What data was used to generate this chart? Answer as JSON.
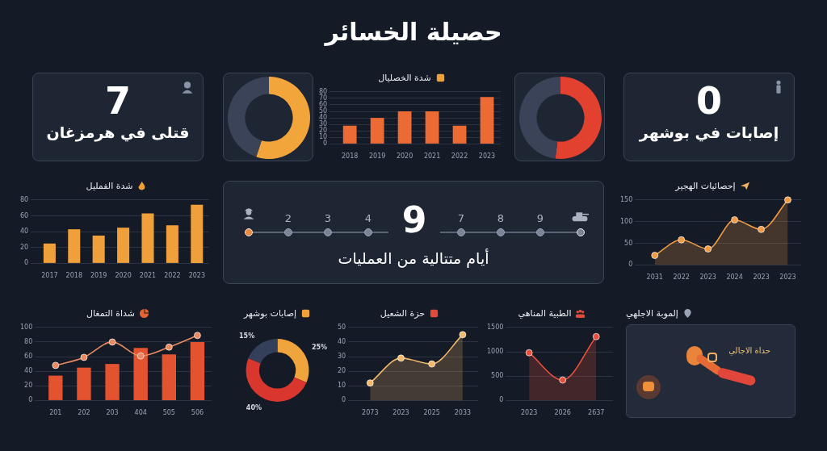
{
  "chart_data": [
    {
      "type": "other",
      "title": "حصيلة الخسائر"
    },
    {
      "type": "other",
      "title": "7",
      "subtitle": "قتلى في هرمزغان"
    },
    {
      "type": "donut",
      "categories": [
        null,
        null
      ],
      "values": [
        55,
        45
      ],
      "colors": [
        "#f2a53a",
        "#3a4357"
      ]
    },
    {
      "type": "bar",
      "title": "شدة الخصليال",
      "categories": [
        "2018",
        "2019",
        "2020",
        "2021",
        "2022",
        "2023"
      ],
      "values": [
        28,
        40,
        50,
        50,
        28,
        72
      ],
      "color": "#ec6a34",
      "ylim": [
        0,
        80
      ],
      "yticks": [
        0,
        10,
        20,
        30,
        40,
        50,
        60,
        70,
        80
      ],
      "grid": "y"
    },
    {
      "type": "donut",
      "categories": [
        null,
        null
      ],
      "values": [
        52,
        48
      ],
      "colors": [
        "#e2412f",
        "#3a4357"
      ]
    },
    {
      "type": "other",
      "title": "0",
      "subtitle": "إصابات في بوشهر"
    },
    {
      "type": "bar",
      "title": "شدة الفمليل",
      "categories": [
        "2017",
        "2018",
        "2019",
        "2020",
        "2021",
        "2022",
        "2023"
      ],
      "values": [
        25,
        43,
        35,
        45,
        63,
        48,
        74
      ],
      "color": "#f0a03a",
      "ylim": [
        0,
        80
      ],
      "yticks": [
        0,
        20,
        40,
        60,
        80
      ],
      "grid": "y"
    },
    {
      "type": "other",
      "title": "9",
      "subtitle": "أيام متتالية من العمليات",
      "annotations": [
        "2",
        "3",
        "4",
        "7",
        "8",
        "9"
      ]
    },
    {
      "type": "area",
      "title": "إحصائيات الهجير",
      "categories": [
        "2031",
        "2022",
        "2023",
        "2024",
        "2023",
        "2023"
      ],
      "values": [
        22,
        58,
        37,
        104,
        82,
        150
      ],
      "color": "#f09a45",
      "ylim": [
        0,
        150
      ],
      "yticks": [
        0,
        50,
        100,
        150
      ],
      "grid": "y",
      "marker": "circle"
    },
    {
      "type": "bar",
      "title": "شداة التمغال",
      "categories": [
        "201",
        "202",
        "203",
        "404",
        "505",
        "506"
      ],
      "ylim": [
        0,
        100
      ],
      "yticks": [
        0,
        20,
        40,
        60,
        80,
        100
      ],
      "grid": "y",
      "marker": "circle",
      "series": [
        {
          "type": "bar",
          "color": "#e4532f",
          "values": [
            34,
            45,
            50,
            72,
            63,
            80
          ]
        },
        {
          "type": "line",
          "color": "#e98a60",
          "values": [
            48,
            59,
            80,
            61,
            73,
            89
          ]
        }
      ]
    },
    {
      "type": "donut",
      "title": "إصابات بوشهر",
      "categories": [
        null,
        null,
        null
      ],
      "values": [
        25,
        40,
        15
      ],
      "colors": [
        "#f0a43c",
        "#d9372d",
        "#34405a"
      ],
      "value_labels": [
        "25%",
        "40%",
        "15%"
      ]
    },
    {
      "type": "area",
      "title": "حزة الشعيل",
      "categories": [
        "2073",
        "2023",
        "2025",
        "2033"
      ],
      "values": [
        12,
        29,
        25,
        45
      ],
      "color": "#f3b86a",
      "ylim": [
        0,
        50
      ],
      "yticks": [
        0,
        10,
        20,
        30,
        40,
        50
      ],
      "grid": "y",
      "marker": "circle"
    },
    {
      "type": "area",
      "title": "الطبية المناهي",
      "categories": [
        "2023",
        "2026",
        "2637"
      ],
      "values": [
        980,
        420,
        1310
      ],
      "color": "#e8503c",
      "ylim": [
        0,
        1500
      ],
      "yticks": [
        0,
        500,
        1000,
        1500
      ],
      "grid": "y",
      "marker": "circle"
    },
    {
      "type": "other",
      "title": "إلموبة الاجلهي",
      "annotations": [
        "حداة الاجالي"
      ]
    }
  ]
}
